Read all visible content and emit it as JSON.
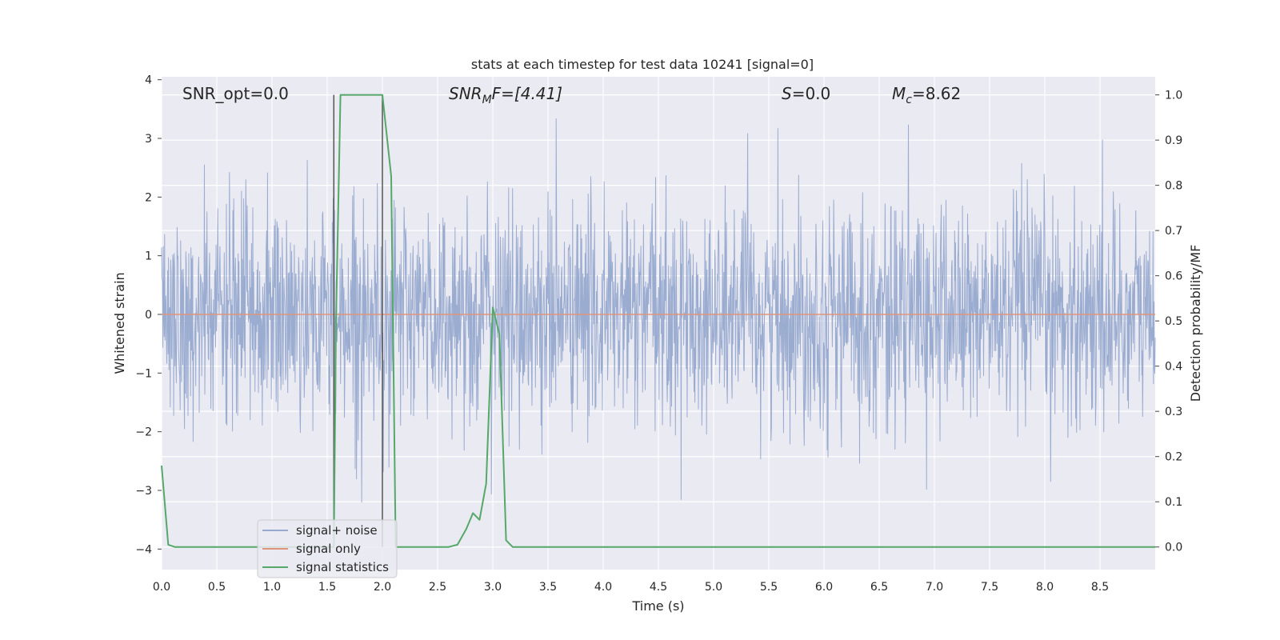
{
  "chart_data": {
    "type": "line",
    "title": "stats at each timestep for test data 10241 [signal=0]",
    "xlabel": "Time (s)",
    "ylabel": "Whitened strain",
    "y2label": "Detection probability/MF",
    "xlim": [
      0.0,
      9.0
    ],
    "ylim": [
      -4.35,
      4.05
    ],
    "y2lim": [
      -0.05,
      1.04
    ],
    "x_ticks": [
      "0.0",
      "0.5",
      "1.0",
      "1.5",
      "2.0",
      "2.5",
      "3.0",
      "3.5",
      "4.0",
      "4.5",
      "5.0",
      "5.5",
      "6.0",
      "6.5",
      "7.0",
      "7.5",
      "8.0",
      "8.5"
    ],
    "y_ticks": [
      "4",
      "3",
      "2",
      "1",
      "0",
      "−1",
      "−2",
      "−3",
      "−4"
    ],
    "y2_ticks": [
      "1.0",
      "0.9",
      "0.8",
      "0.7",
      "0.6",
      "0.5",
      "0.4",
      "0.3",
      "0.2",
      "0.1",
      "0.0"
    ],
    "y_tick_values": [
      4,
      3,
      2,
      1,
      0,
      -1,
      -2,
      -3,
      -4
    ],
    "y2_tick_values": [
      1.0,
      0.9,
      0.8,
      0.7,
      0.6,
      0.5,
      0.4,
      0.3,
      0.2,
      0.1,
      0.0
    ],
    "grid": true,
    "legend_position": "lower-left",
    "annotations": {
      "snr_opt": "SNR_opt=0.0",
      "snr_mf_main": "SNR",
      "snr_mf_sub": "M",
      "snr_mf_rest": "F=[4.41]",
      "s_main": "S",
      "s_rest": "=0.0",
      "mc_main": "M",
      "mc_sub": "c",
      "mc_rest": "=8.62"
    },
    "vertical_lines": [
      1.56,
      2.0
    ],
    "series": [
      {
        "name": "signal+ noise",
        "color": "#97a9cf",
        "axis": "left",
        "description_values": {
          "mean": 0.0,
          "typical_max": 2.5,
          "typical_min": -2.5,
          "peak_max": 3.66,
          "peak_min": -3.9
        }
      },
      {
        "name": "signal only",
        "color": "#e0957a",
        "axis": "left",
        "x": [
          0.0,
          9.0
        ],
        "values": [
          0.0,
          0.0
        ]
      },
      {
        "name": "signal statistics",
        "color": "#55a868",
        "axis": "right",
        "x": [
          0.0,
          0.06,
          0.12,
          0.5,
          1.0,
          1.5,
          1.56,
          1.58,
          1.62,
          2.0,
          2.08,
          2.12,
          2.2,
          2.6,
          2.68,
          2.76,
          2.82,
          2.88,
          2.94,
          3.0,
          3.06,
          3.12,
          3.18,
          4.0,
          5.0,
          6.0,
          7.0,
          8.0,
          9.0
        ],
        "values": [
          0.18,
          0.005,
          0.0,
          0.0,
          0.0,
          0.0,
          0.0,
          0.5,
          1.0,
          1.0,
          0.82,
          0.0,
          0.0,
          0.0,
          0.005,
          0.04,
          0.075,
          0.06,
          0.14,
          0.53,
          0.47,
          0.015,
          0.0,
          0.0,
          0.0,
          0.0,
          0.0,
          0.0,
          0.0
        ]
      }
    ]
  }
}
